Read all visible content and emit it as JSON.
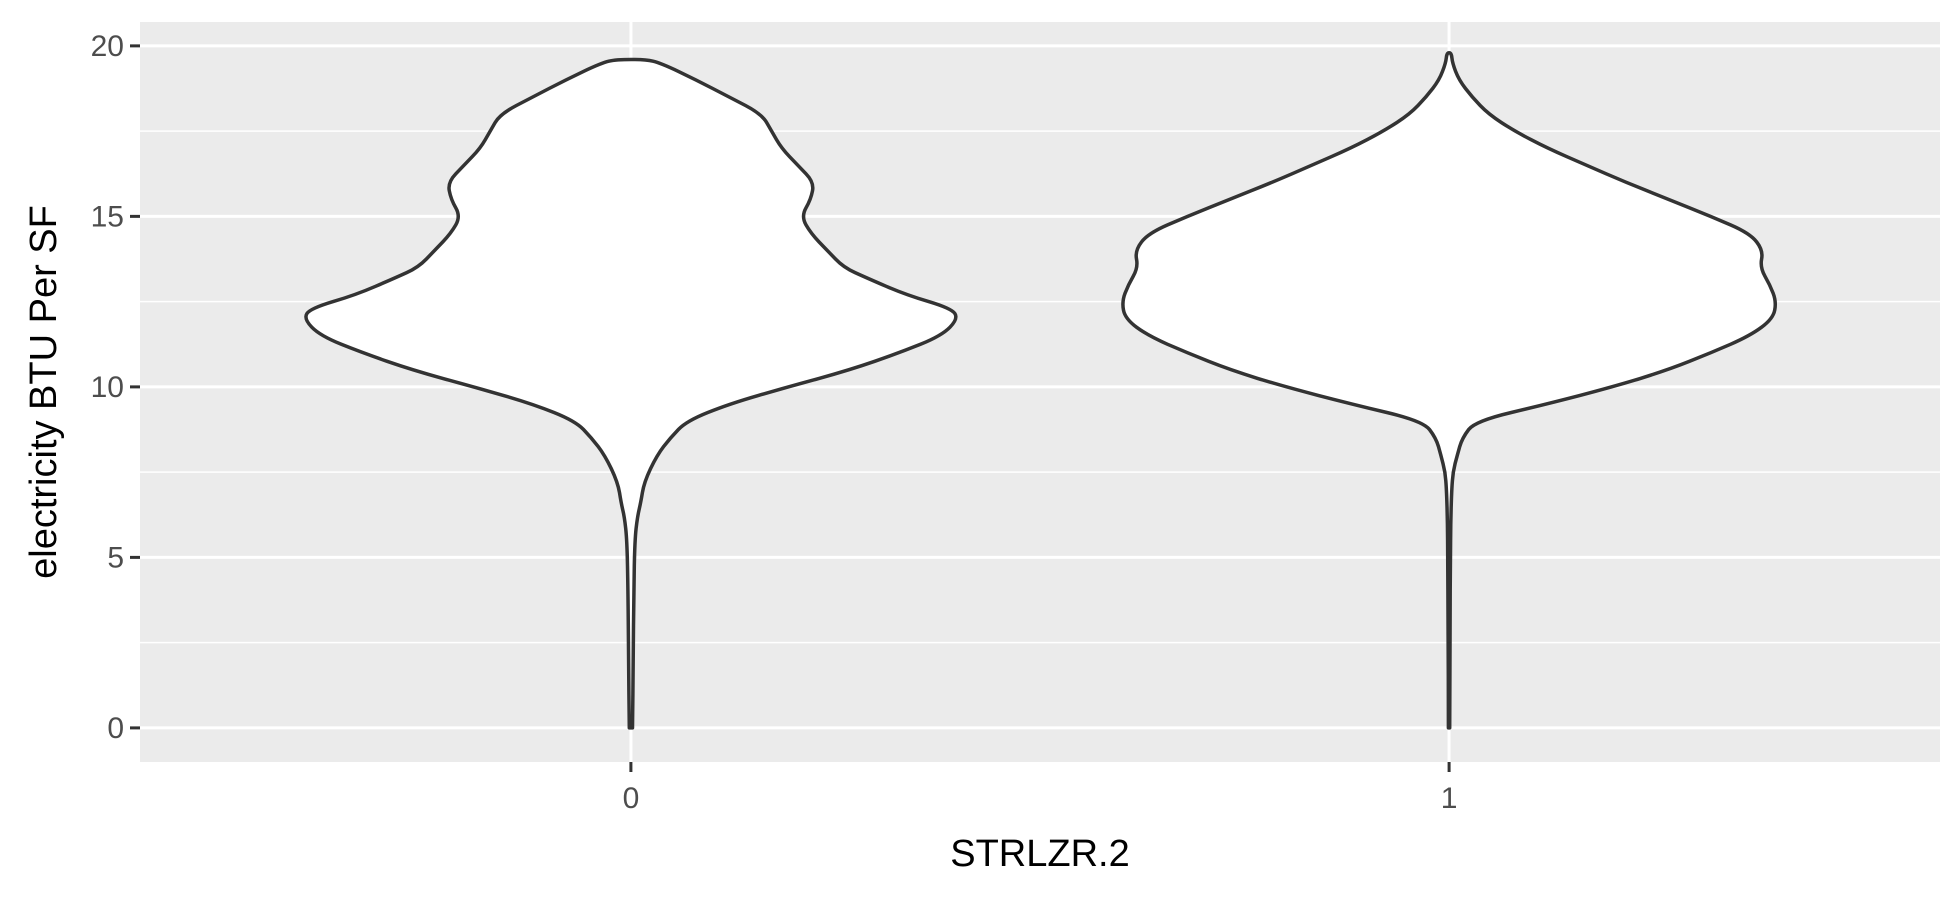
{
  "chart_data": {
    "type": "violin",
    "xlabel": "STRLZR.2",
    "ylabel": "electricity BTU Per SF",
    "categories": [
      "0",
      "1"
    ],
    "y_ticks": [
      0,
      5,
      10,
      15,
      20
    ],
    "ylim": [
      -1,
      20.7
    ],
    "grid": true,
    "series": [
      {
        "category": "0",
        "y_min": 0,
        "y_max": 19.6,
        "density_profile": [
          [
            0,
            0.005
          ],
          [
            2,
            0.007
          ],
          [
            4,
            0.009
          ],
          [
            5.5,
            0.012
          ],
          [
            6.2,
            0.02
          ],
          [
            6.6,
            0.03
          ],
          [
            7.2,
            0.04
          ],
          [
            8,
            0.08
          ],
          [
            8.5,
            0.12
          ],
          [
            9,
            0.17
          ],
          [
            9.5,
            0.3
          ],
          [
            10,
            0.48
          ],
          [
            10.5,
            0.67
          ],
          [
            11,
            0.82
          ],
          [
            11.5,
            0.95
          ],
          [
            12,
            1.0
          ],
          [
            12.3,
            0.98
          ],
          [
            12.7,
            0.84
          ],
          [
            13.2,
            0.72
          ],
          [
            13.5,
            0.65
          ],
          [
            14,
            0.6
          ],
          [
            14.5,
            0.55
          ],
          [
            15,
            0.52
          ],
          [
            15.5,
            0.55
          ],
          [
            16,
            0.56
          ],
          [
            16.5,
            0.51
          ],
          [
            17,
            0.46
          ],
          [
            17.5,
            0.43
          ],
          [
            18,
            0.4
          ],
          [
            18.5,
            0.3
          ],
          [
            19,
            0.2
          ],
          [
            19.5,
            0.09
          ],
          [
            19.6,
            0.045
          ]
        ]
      },
      {
        "category": "1",
        "y_min": 0,
        "y_max": 19.8,
        "density_profile": [
          [
            0,
            0.002
          ],
          [
            3,
            0.003
          ],
          [
            5,
            0.004
          ],
          [
            6,
            0.005
          ],
          [
            7,
            0.008
          ],
          [
            7.5,
            0.012
          ],
          [
            8,
            0.025
          ],
          [
            8.5,
            0.04
          ],
          [
            9,
            0.08
          ],
          [
            9.5,
            0.3
          ],
          [
            10,
            0.5
          ],
          [
            10.5,
            0.67
          ],
          [
            11,
            0.8
          ],
          [
            11.5,
            0.92
          ],
          [
            12,
            0.99
          ],
          [
            12.5,
            1.0
          ],
          [
            13,
            0.98
          ],
          [
            13.5,
            0.95
          ],
          [
            14,
            0.96
          ],
          [
            14.5,
            0.92
          ],
          [
            15,
            0.8
          ],
          [
            15.5,
            0.67
          ],
          [
            16,
            0.54
          ],
          [
            16.5,
            0.42
          ],
          [
            17,
            0.3
          ],
          [
            17.5,
            0.2
          ],
          [
            18,
            0.12
          ],
          [
            18.5,
            0.07
          ],
          [
            19,
            0.03
          ],
          [
            19.5,
            0.01
          ],
          [
            19.8,
            0.007
          ]
        ]
      }
    ]
  }
}
